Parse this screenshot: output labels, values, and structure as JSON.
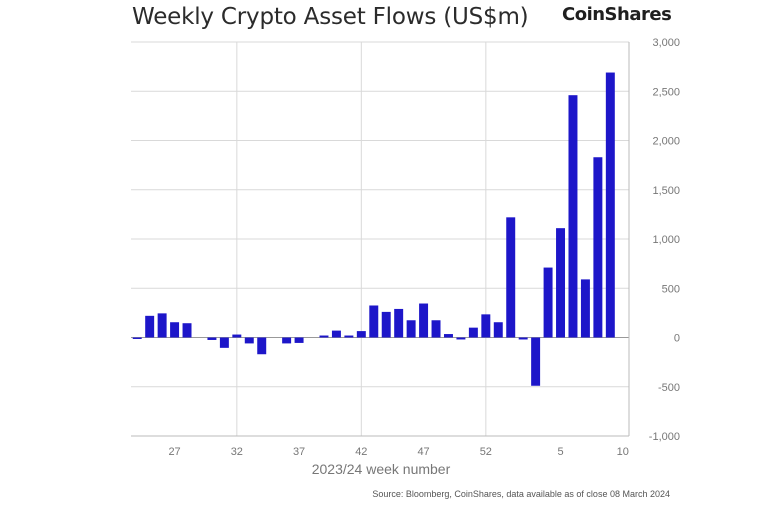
{
  "title": "Weekly Crypto Asset Flows (US$m)",
  "brand": "CoinShares",
  "source": "Source: Bloomberg, CoinShares, data available as of close 08 March 2024",
  "colors": {
    "bar": "#1d16c9",
    "grid": "#d9d9d9",
    "axis": "#bbbbbb",
    "text": "#777777"
  },
  "chart_data": {
    "type": "bar",
    "title": "Weekly Crypto Asset Flows (US$m)",
    "xlabel": "2023/24 week number",
    "ylabel": "US$m",
    "ylim": [
      -1000,
      3000
    ],
    "yticks": [
      3000,
      2500,
      2000,
      1500,
      1000,
      500,
      0,
      -500,
      -1000
    ],
    "ytick_labels": [
      "3,000",
      "2,500",
      "2,000",
      "1,500",
      "1,000",
      "500",
      "0",
      "-500",
      "-1,000"
    ],
    "categories": [
      "24",
      "25",
      "26",
      "27",
      "28",
      "29",
      "30",
      "31",
      "32",
      "33",
      "34",
      "35",
      "36",
      "37",
      "38",
      "39",
      "40",
      "41",
      "42",
      "43",
      "44",
      "45",
      "46",
      "47",
      "48",
      "49",
      "50",
      "51",
      "52",
      "53",
      "1",
      "2",
      "3",
      "4",
      "5",
      "6",
      "7",
      "8",
      "9",
      "10"
    ],
    "xtick_labels": [
      "27",
      "32",
      "37",
      "42",
      "47",
      "52",
      "5",
      "10"
    ],
    "values": [
      -15,
      220,
      245,
      155,
      145,
      0,
      -25,
      -105,
      30,
      -60,
      -170,
      0,
      -60,
      -55,
      0,
      20,
      70,
      20,
      65,
      325,
      260,
      290,
      175,
      345,
      175,
      35,
      -20,
      100,
      235,
      155,
      1220,
      -20,
      -490,
      710,
      1110,
      2460,
      590,
      1830,
      2690,
      0
    ],
    "grid": "vertical"
  }
}
